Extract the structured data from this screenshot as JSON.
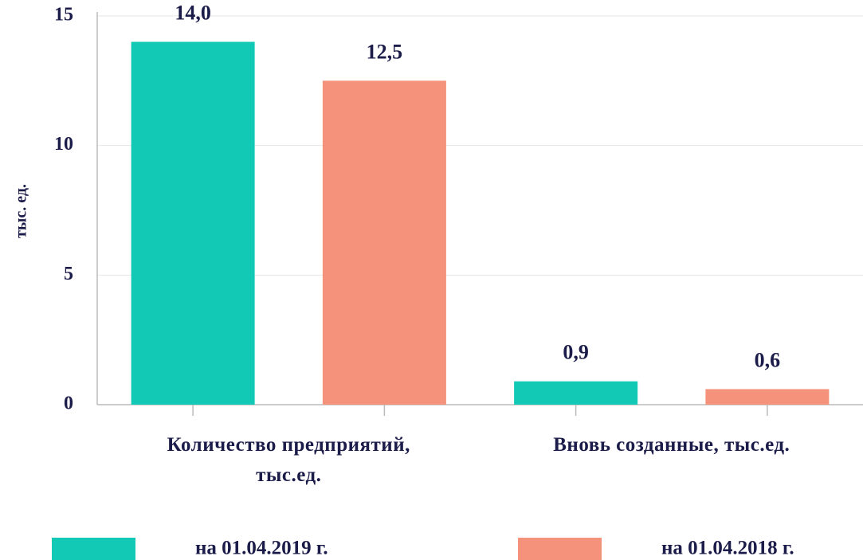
{
  "chart_data": {
    "type": "bar",
    "y_label": "тыс. ед.",
    "categories": [
      "Количество предприятий, тыс.ед.",
      "Вновь созданные, тыс.ед."
    ],
    "series": [
      {
        "name": "на 01.04.2019 г.",
        "color": "#11c9b4",
        "values": [
          14.0,
          0.9
        ],
        "value_labels": [
          "14,0",
          "0,9"
        ]
      },
      {
        "name": "на 01.04.2018 г.",
        "color": "#f4927b",
        "values": [
          12.5,
          0.6
        ],
        "value_labels": [
          "12,5",
          "0,6"
        ]
      }
    ],
    "ylim": [
      0,
      15
    ],
    "yticks": [
      0,
      5,
      10,
      15
    ],
    "grid": true,
    "legend": "bottom"
  }
}
